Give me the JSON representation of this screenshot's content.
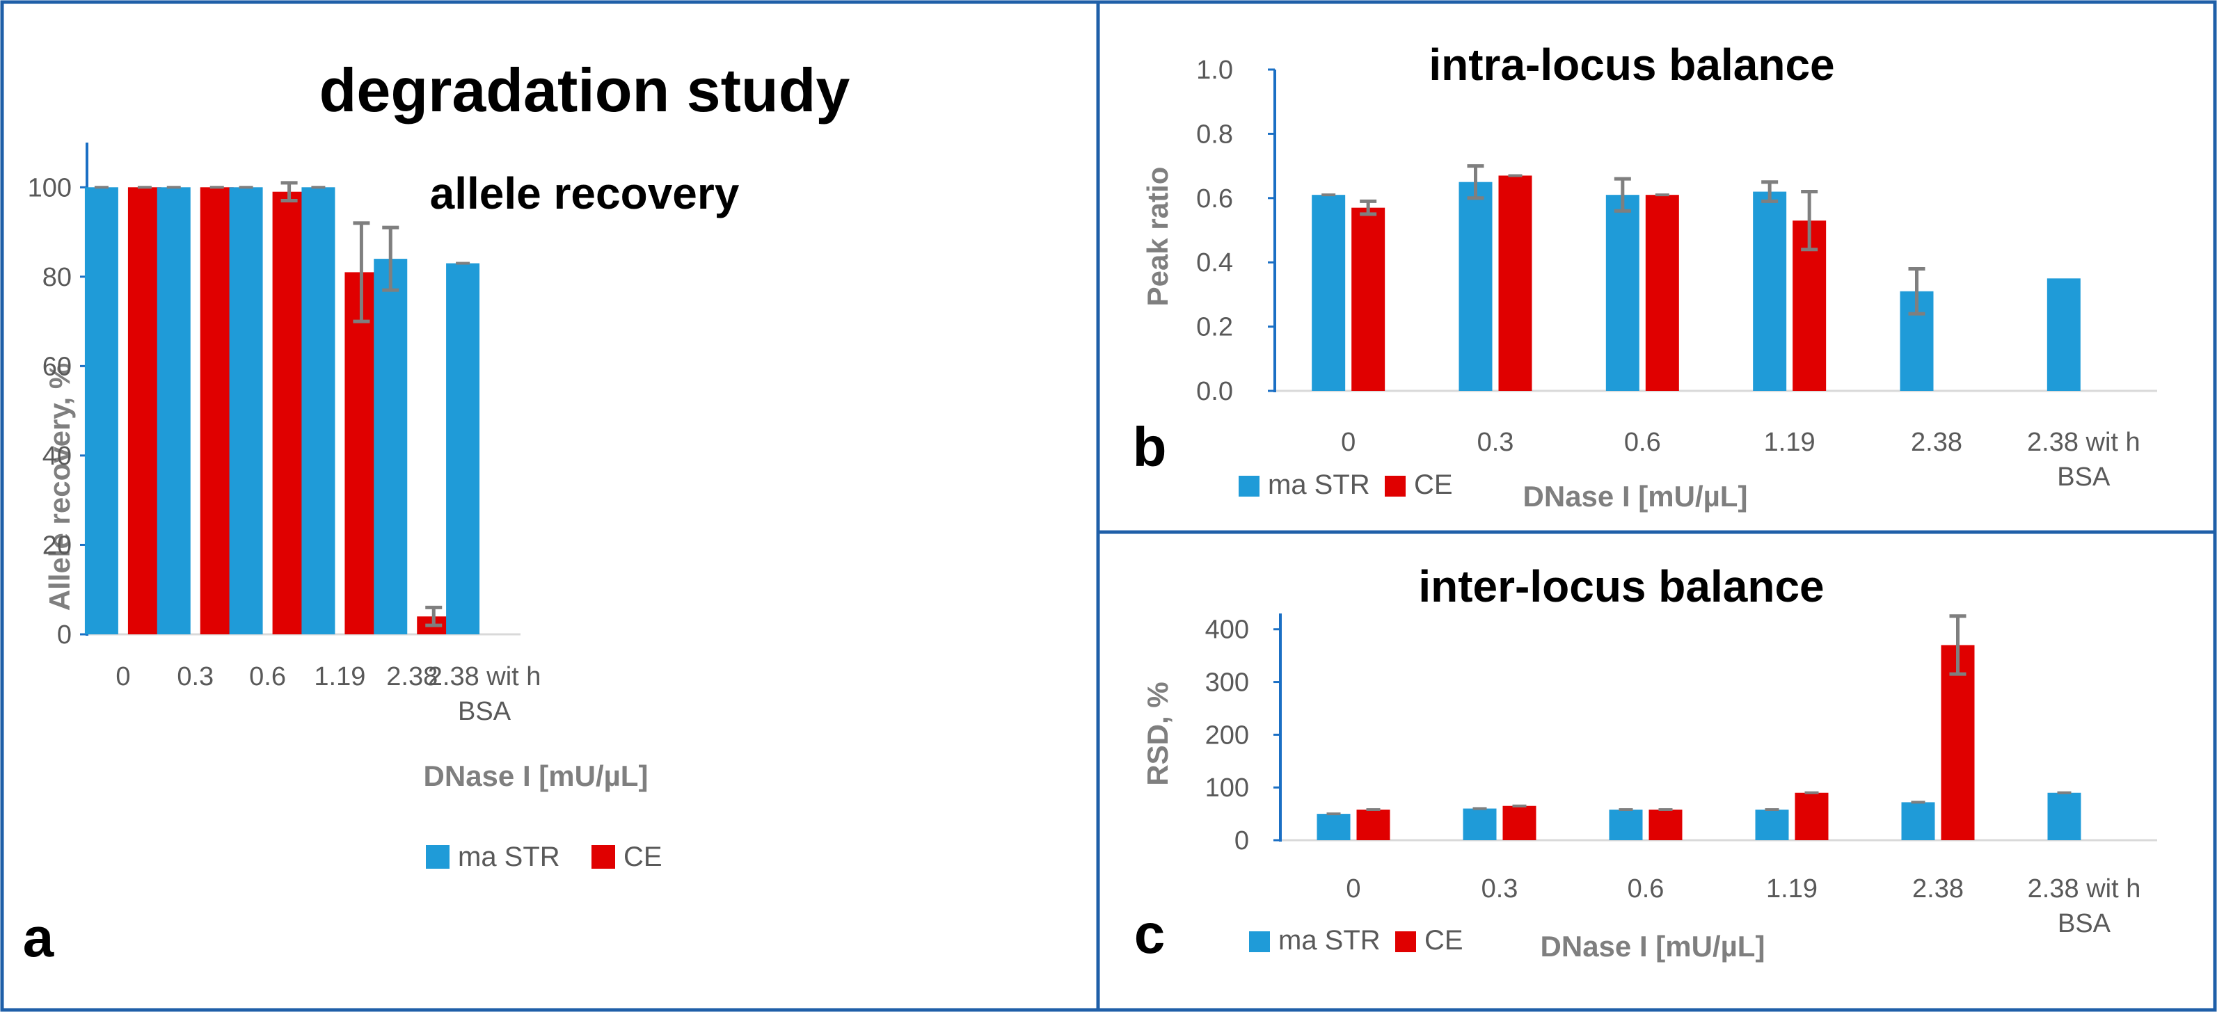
{
  "title": "degradation study",
  "colors": {
    "maSTR": "#1f9bd8",
    "CE": "#e00000",
    "frame": "#1f5fa8",
    "axis": "#1a6fc4",
    "errorbar": "#7f7f7f",
    "grid": "#d9d9d9"
  },
  "chart_data": [
    {
      "id": "a",
      "type": "bar",
      "panel_label": "a",
      "title": "allele recovery",
      "xlabel": "DNase I [mU/µL]",
      "ylabel": "Allele recovery, %",
      "categories": [
        "0",
        "0.3",
        "0.6",
        "1.19",
        "2.38",
        "2.38 with BSA"
      ],
      "category_lines": [
        [
          "0"
        ],
        [
          "0.3"
        ],
        [
          "0.6"
        ],
        [
          "1.19"
        ],
        [
          "2.38"
        ],
        [
          "2.38 wit h",
          "BSA"
        ]
      ],
      "yticks": [
        "0",
        "20",
        "40",
        "60",
        "80",
        "100"
      ],
      "ylim": [
        0,
        110
      ],
      "series": [
        {
          "name": "maSTR",
          "values": [
            100,
            100,
            100,
            100,
            84,
            83
          ],
          "errors": [
            0,
            0,
            0,
            0,
            7,
            0
          ]
        },
        {
          "name": "CE",
          "values": [
            100,
            100,
            99,
            81,
            4,
            null
          ],
          "errors": [
            0,
            0,
            2,
            11,
            2,
            0
          ]
        }
      ],
      "legend_labels": [
        "ma STR",
        "CE"
      ],
      "legend": "bottom"
    },
    {
      "id": "b",
      "type": "bar",
      "panel_label": "b",
      "title": "intra-locus balance",
      "xlabel": "DNase I [mU/µL]",
      "ylabel": "Peak ratio",
      "categories": [
        "0",
        "0.3",
        "0.6",
        "1.19",
        "2.38",
        "2.38 with BSA"
      ],
      "category_lines": [
        [
          "0"
        ],
        [
          "0.3"
        ],
        [
          "0.6"
        ],
        [
          "1.19"
        ],
        [
          "2.38"
        ],
        [
          "2.38 wit h",
          "BSA"
        ]
      ],
      "yticks": [
        "0.0",
        "0.2",
        "0.4",
        "0.6",
        "0.8",
        "1.0"
      ],
      "ylim": [
        0,
        1.0
      ],
      "series": [
        {
          "name": "maSTR",
          "values": [
            0.61,
            0.65,
            0.61,
            0.62,
            0.31,
            0.35
          ],
          "errors": [
            0,
            0.05,
            0.05,
            0.03,
            0.07,
            0
          ]
        },
        {
          "name": "CE",
          "values": [
            0.57,
            0.67,
            0.61,
            0.53,
            null,
            null
          ],
          "errors": [
            0.02,
            0,
            0,
            0.09,
            0,
            0
          ]
        }
      ],
      "legend_labels": [
        "ma STR",
        "CE"
      ],
      "legend": "bottom-left"
    },
    {
      "id": "c",
      "type": "bar",
      "panel_label": "c",
      "title": "inter-locus balance",
      "xlabel": "DNase I [mU/µL]",
      "ylabel": "RSD, %",
      "categories": [
        "0",
        "0.3",
        "0.6",
        "1.19",
        "2.38",
        "2.38 with BSA"
      ],
      "category_lines": [
        [
          "0"
        ],
        [
          "0.3"
        ],
        [
          "0.6"
        ],
        [
          "1.19"
        ],
        [
          "2.38"
        ],
        [
          "2.38 wit h",
          "BSA"
        ]
      ],
      "yticks": [
        "0",
        "100",
        "200",
        "300",
        "400"
      ],
      "ylim": [
        0,
        430
      ],
      "series": [
        {
          "name": "maSTR",
          "values": [
            50,
            60,
            58,
            58,
            72,
            90
          ],
          "errors": [
            0,
            0,
            0,
            0,
            0,
            0
          ]
        },
        {
          "name": "CE",
          "values": [
            58,
            65,
            58,
            90,
            370,
            null
          ],
          "errors": [
            0,
            0,
            0,
            0,
            55,
            0
          ]
        }
      ],
      "legend_labels": [
        "ma STR",
        "CE"
      ],
      "legend": "bottom-left"
    }
  ]
}
